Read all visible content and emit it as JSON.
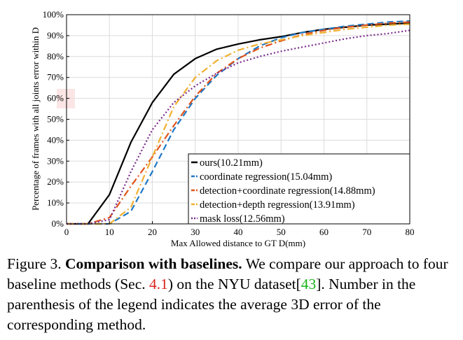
{
  "chart_data": {
    "type": "line",
    "xlabel": "Max Allowed distance to GT D(mm)",
    "ylabel": "Percentage of frames with all joints error within D",
    "xlim": [
      0,
      80
    ],
    "ylim": [
      0,
      100
    ],
    "x_ticks": [
      "0",
      "10",
      "20",
      "30",
      "40",
      "50",
      "60",
      "70",
      "80"
    ],
    "y_ticks": [
      "0%",
      "10%",
      "20%",
      "30%",
      "40%",
      "50%",
      "60%",
      "70%",
      "80%",
      "90%",
      "100%"
    ],
    "grid": true,
    "legend_position": "bottom-right",
    "series": [
      {
        "name": "ours(10.21mm)",
        "color": "#000000",
        "dash": "solid",
        "x": [
          0,
          5,
          10,
          15,
          20,
          25,
          30,
          35,
          40,
          45,
          50,
          55,
          60,
          65,
          70,
          75,
          80
        ],
        "y": [
          0,
          0,
          14,
          39,
          58,
          71.5,
          79,
          83.5,
          86,
          88,
          89.5,
          91.5,
          93,
          94,
          95,
          95.5,
          96
        ]
      },
      {
        "name": "coordinate regression(15.04mm)",
        "color": "#1f77c4",
        "dash": "dashed",
        "x": [
          0,
          5,
          10,
          15,
          20,
          25,
          30,
          35,
          40,
          45,
          50,
          55,
          60,
          65,
          70,
          75,
          80
        ],
        "y": [
          0,
          0,
          0,
          6,
          25,
          45,
          60,
          71,
          79,
          85,
          89,
          91.5,
          93,
          94.5,
          95.5,
          96.5,
          97
        ]
      },
      {
        "name": "detection+coordinate regression(14.88mm)",
        "color": "#e0541c",
        "dash": "dashdot",
        "x": [
          0,
          5,
          10,
          15,
          20,
          25,
          30,
          35,
          40,
          45,
          50,
          55,
          60,
          65,
          70,
          75,
          80
        ],
        "y": [
          0,
          0,
          3,
          18,
          32,
          47,
          61,
          72,
          79,
          84,
          87.5,
          90.5,
          92.5,
          94,
          95,
          96,
          96.5
        ]
      },
      {
        "name": "detection+depth regression(13.91mm)",
        "color": "#f0b030",
        "dash": "dashdot",
        "x": [
          0,
          5,
          10,
          15,
          20,
          25,
          30,
          35,
          40,
          45,
          50,
          55,
          60,
          65,
          70,
          75,
          80
        ],
        "y": [
          0,
          0,
          0,
          8,
          32,
          56,
          70,
          78,
          83,
          86,
          88,
          90,
          91.5,
          93,
          94,
          95,
          95.5
        ]
      },
      {
        "name": "mask loss(12.56mm)",
        "color": "#7a2a8c",
        "dash": "dotted",
        "x": [
          0,
          5,
          10,
          15,
          20,
          25,
          30,
          35,
          40,
          45,
          50,
          55,
          60,
          65,
          70,
          75,
          80
        ],
        "y": [
          0,
          0,
          2,
          25,
          45,
          58,
          66,
          72,
          77,
          80,
          82.5,
          84.5,
          86.5,
          88.5,
          90,
          91,
          92.5
        ]
      }
    ]
  },
  "caption": {
    "prefix": "Figure 3.",
    "bold": "Comparison with baselines.",
    "text1": "We compare our approach to four baseline methods (Sec.",
    "ref1": "4.1",
    "text2": ") on the NYU dataset[",
    "ref2": "43",
    "text3": "]. Number in the parenthesis of the legend indicates the average 3D error of the corresponding method."
  }
}
